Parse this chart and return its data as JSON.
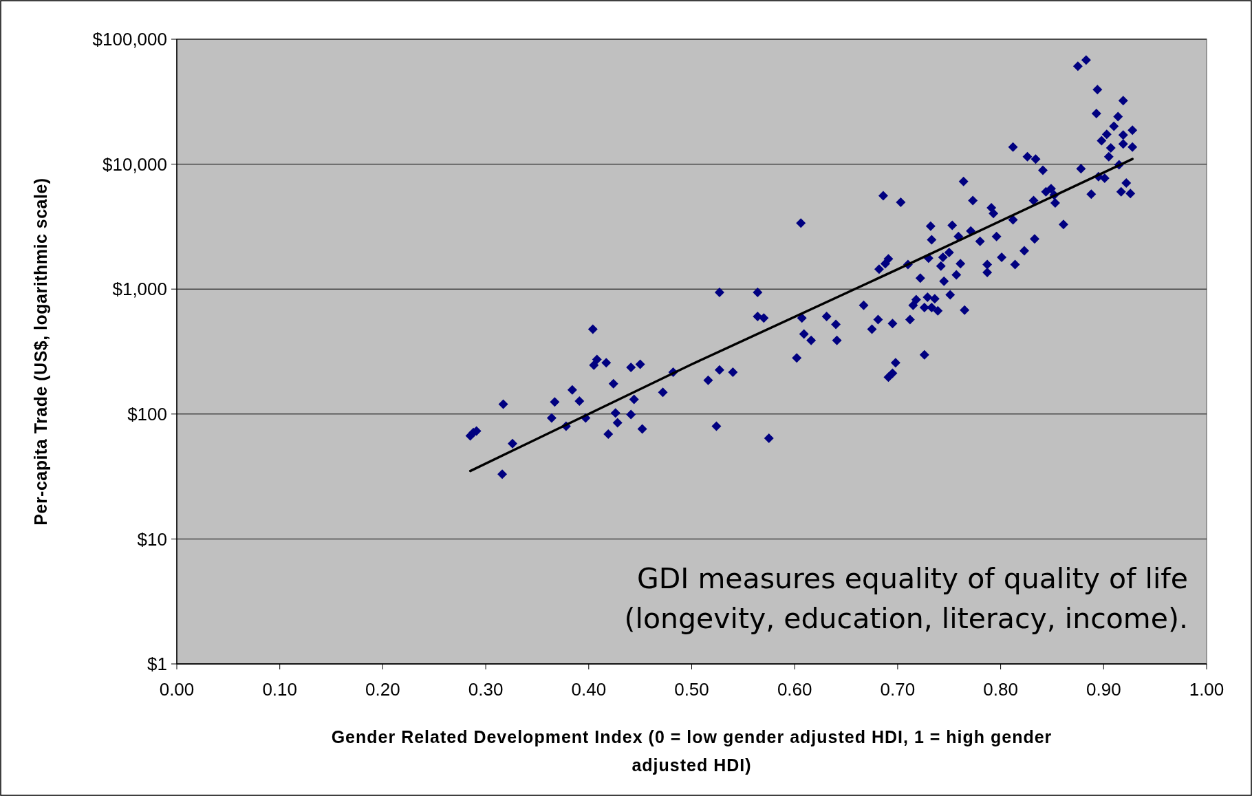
{
  "chart_data": {
    "type": "scatter",
    "xlabel": "Gender Related Development Index (0 = low gender adjusted HDI, 1 = high gender adjusted HDI)",
    "ylabel": "Per-capita Trade (US$, logarithmic scale)",
    "annotations": [
      "GDI measures equality of quality of life\n(longevity, education, literacy, income)."
    ],
    "log": "y",
    "grid": "y",
    "marker": "diamond",
    "xlim": [
      0,
      1
    ],
    "ylim": [
      1,
      100000
    ],
    "xticks": [
      {
        "value": 0,
        "label": "0.00"
      },
      {
        "value": 0.1,
        "label": "0.10"
      },
      {
        "value": 0.2,
        "label": "0.20"
      },
      {
        "value": 0.3,
        "label": "0.30"
      },
      {
        "value": 0.4,
        "label": "0.40"
      },
      {
        "value": 0.5,
        "label": "0.50"
      },
      {
        "value": 0.6,
        "label": "0.60"
      },
      {
        "value": 0.7,
        "label": "0.70"
      },
      {
        "value": 0.8,
        "label": "0.80"
      },
      {
        "value": 0.9,
        "label": "0.90"
      },
      {
        "value": 1,
        "label": "1.00"
      }
    ],
    "yticks": [
      {
        "value": 1,
        "label": "$1"
      },
      {
        "value": 10,
        "label": "$10"
      },
      {
        "value": 100,
        "label": "$100"
      },
      {
        "value": 1000,
        "label": "$1,000"
      },
      {
        "value": 10000,
        "label": "$10,000"
      },
      {
        "value": 100000,
        "label": "$100,000"
      }
    ],
    "series": [
      {
        "color": "#000080",
        "x": [
          0.285,
          0.288,
          0.291,
          0.317,
          0.316,
          0.326,
          0.364,
          0.367,
          0.378,
          0.384,
          0.391,
          0.397,
          0.404,
          0.405,
          0.408,
          0.417,
          0.419,
          0.424,
          0.426,
          0.428,
          0.441,
          0.441,
          0.444,
          0.45,
          0.452,
          0.472,
          0.482,
          0.516,
          0.524,
          0.527,
          0.527,
          0.54,
          0.564,
          0.564,
          0.57,
          0.575,
          0.602,
          0.606,
          0.607,
          0.609,
          0.616,
          0.631,
          0.64,
          0.641,
          0.667,
          0.675,
          0.681,
          0.682,
          0.686,
          0.688,
          0.691,
          0.691,
          0.695,
          0.695,
          0.698,
          0.703,
          0.71,
          0.712,
          0.715,
          0.718,
          0.722,
          0.726,
          0.726,
          0.729,
          0.73,
          0.732,
          0.733,
          0.733,
          0.736,
          0.739,
          0.742,
          0.744,
          0.745,
          0.75,
          0.751,
          0.753,
          0.757,
          0.759,
          0.761,
          0.764,
          0.765,
          0.771,
          0.773,
          0.78,
          0.787,
          0.787,
          0.791,
          0.793,
          0.796,
          0.801,
          0.812,
          0.812,
          0.814,
          0.823,
          0.826,
          0.832,
          0.833,
          0.834,
          0.841,
          0.844,
          0.849,
          0.852,
          0.853,
          0.861,
          0.875,
          0.883,
          0.878,
          0.888,
          0.893,
          0.894,
          0.895,
          0.898,
          0.901,
          0.903,
          0.905,
          0.907,
          0.91,
          0.914,
          0.915,
          0.917,
          0.919,
          0.919,
          0.919,
          0.922,
          0.926,
          0.928,
          0.928
        ],
        "values": [
          67,
          71,
          73,
          120,
          33,
          58,
          93,
          125,
          80,
          156,
          127,
          93,
          478,
          246,
          273,
          257,
          69,
          175,
          102,
          85,
          236,
          99,
          131,
          250,
          76,
          149,
          216,
          186,
          80,
          940,
          225,
          216,
          940,
          604,
          587,
          64,
          281,
          3380,
          587,
          437,
          389,
          604,
          521,
          389,
          743,
          478,
          570,
          1442,
          5580,
          1597,
          1746,
          197,
          212,
          530,
          257,
          4960,
          1573,
          570,
          743,
          824,
          1225,
          298,
          711,
          861,
          1770,
          3190,
          2480,
          711,
          836,
          670,
          1528,
          1795,
          1156,
          1964,
          899,
          3236,
          1300,
          2636,
          1597,
          7280,
          679,
          2917,
          5108,
          2410,
          1573,
          1358,
          4477,
          4037,
          2636,
          1795,
          3590,
          13700,
          1573,
          2024,
          11480,
          5108,
          2523,
          10990,
          8930,
          6010,
          6370,
          5660,
          4890,
          3290,
          60700,
          68200,
          9200,
          5750,
          25400,
          39500,
          7940,
          15400,
          7710,
          17300,
          11480,
          13500,
          20100,
          24000,
          9900,
          6010,
          32200,
          14500,
          17100,
          7060,
          5830,
          18700,
          13700
        ]
      },
      {
        "type": "line",
        "color": "#000000",
        "marker": "none",
        "x": [
          0.285,
          0.5,
          0.7,
          0.928
        ],
        "values": [
          35,
          250,
          1440,
          11000
        ]
      }
    ]
  }
}
